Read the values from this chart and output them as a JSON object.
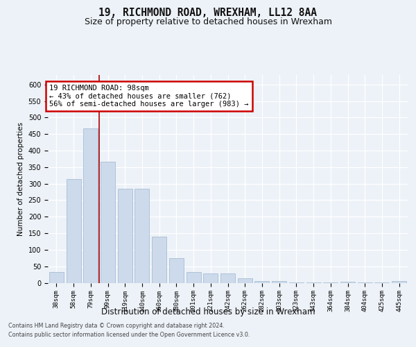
{
  "title1": "19, RICHMOND ROAD, WREXHAM, LL12 8AA",
  "title2": "Size of property relative to detached houses in Wrexham",
  "xlabel": "Distribution of detached houses by size in Wrexham",
  "ylabel": "Number of detached properties",
  "categories": [
    "38sqm",
    "58sqm",
    "79sqm",
    "99sqm",
    "119sqm",
    "140sqm",
    "160sqm",
    "180sqm",
    "201sqm",
    "221sqm",
    "242sqm",
    "262sqm",
    "282sqm",
    "303sqm",
    "323sqm",
    "343sqm",
    "364sqm",
    "384sqm",
    "404sqm",
    "425sqm",
    "445sqm"
  ],
  "values": [
    32,
    315,
    467,
    367,
    285,
    285,
    140,
    75,
    32,
    28,
    28,
    14,
    6,
    5,
    2,
    2,
    2,
    4,
    2,
    1,
    5
  ],
  "bar_color": "#ccdaeb",
  "bar_edge_color": "#a8bdd4",
  "vline_pos": 2.5,
  "vline_color": "#aa0000",
  "annotation_line1": "19 RICHMOND ROAD: 98sqm",
  "annotation_line2": "← 43% of detached houses are smaller (762)",
  "annotation_line3": "56% of semi-detached houses are larger (983) →",
  "annotation_edge_color": "#cc0000",
  "footer1": "Contains HM Land Registry data © Crown copyright and database right 2024.",
  "footer2": "Contains public sector information licensed under the Open Government Licence v3.0.",
  "ylim": [
    0,
    630
  ],
  "bg_color": "#edf2f8",
  "grid_color": "#ffffff",
  "yticks": [
    0,
    50,
    100,
    150,
    200,
    250,
    300,
    350,
    400,
    450,
    500,
    550,
    600
  ]
}
